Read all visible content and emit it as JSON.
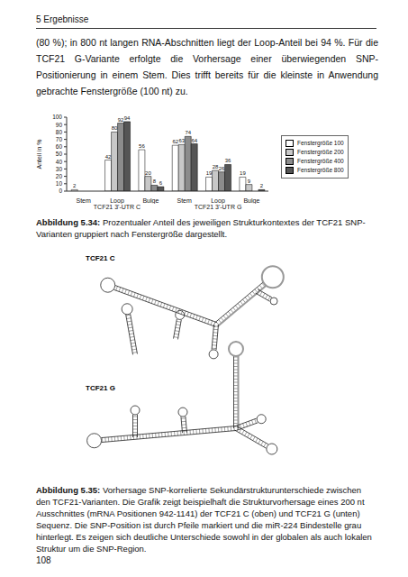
{
  "header": "5 Ergebnisse",
  "paragraph": "(80 %); in 800 nt langen RNA-Abschnitten liegt der Loop-Anteil bei 94 %. Für die TCF21 G-Variante erfolgte die Vorhersage einer überwiegenden SNP-Positionierung in einem Stem. Dies trifft bereits für die kleinste in Anwendung gebrachte Fenstergröße (100 nt) zu.",
  "chart_data": {
    "type": "bar",
    "y_label": "Anteil in %",
    "categories": [
      "Stem",
      "Loop",
      "Bulge",
      "Stem",
      "Loop",
      "Bulge"
    ],
    "groups": [
      "TCF21 3'-UTR C",
      "TCF21 3'-UTR G"
    ],
    "series": [
      {
        "name": "Fenstergröße 100",
        "color": "#ffffff",
        "values": [
          2,
          42,
          56,
          62,
          19,
          19
        ]
      },
      {
        "name": "Fenstergröße 200",
        "color": "#c8c8c8",
        "values": [
          0,
          80,
          20,
          63,
          28,
          9
        ]
      },
      {
        "name": "Fenstergröße 400",
        "color": "#8c8c8c",
        "values": [
          0,
          92,
          8,
          74,
          26,
          0
        ]
      },
      {
        "name": "Fenstergröße 800",
        "color": "#555555",
        "values": [
          0,
          94,
          6,
          64,
          36,
          2
        ]
      }
    ],
    "ylim": [
      0,
      100
    ],
    "yticks": [
      0,
      10,
      20,
      30,
      40,
      50,
      60,
      70,
      80,
      90,
      100
    ],
    "data_labels": true,
    "legend": "right",
    "grid": false
  },
  "figure_caption_1": {
    "label": "Abbildung 5.34:",
    "text": "Prozentualer Anteil des jeweiligen Strukturkontextes der TCF21 SNP-Varianten gruppiert nach Fenstergröße dargestellt."
  },
  "diagram": {
    "labels": [
      "TCF21 C",
      "TCF21 G"
    ]
  },
  "figure_caption_2": {
    "label": "Abbildung 5.35:",
    "text": "Vorhersage SNP-korrelierte Sekundärstrukturunterschiede zwischen den TCF21-Varianten. Die Grafik zeigt beispielhaft die Strukturvorhersage eines 200 nt Ausschnittes (mRNA Positionen 942-1141) der TCF21 C (oben) und TCF21 G (unten) Sequenz. Die SNP-Position ist durch Pfeile markiert und die miR-224 Bindestelle grau hinterlegt. Es zeigen sich deutliche Unterschiede sowohl in der globalen als auch lokalen Struktur um die SNP-Region."
  },
  "page_number": "108"
}
